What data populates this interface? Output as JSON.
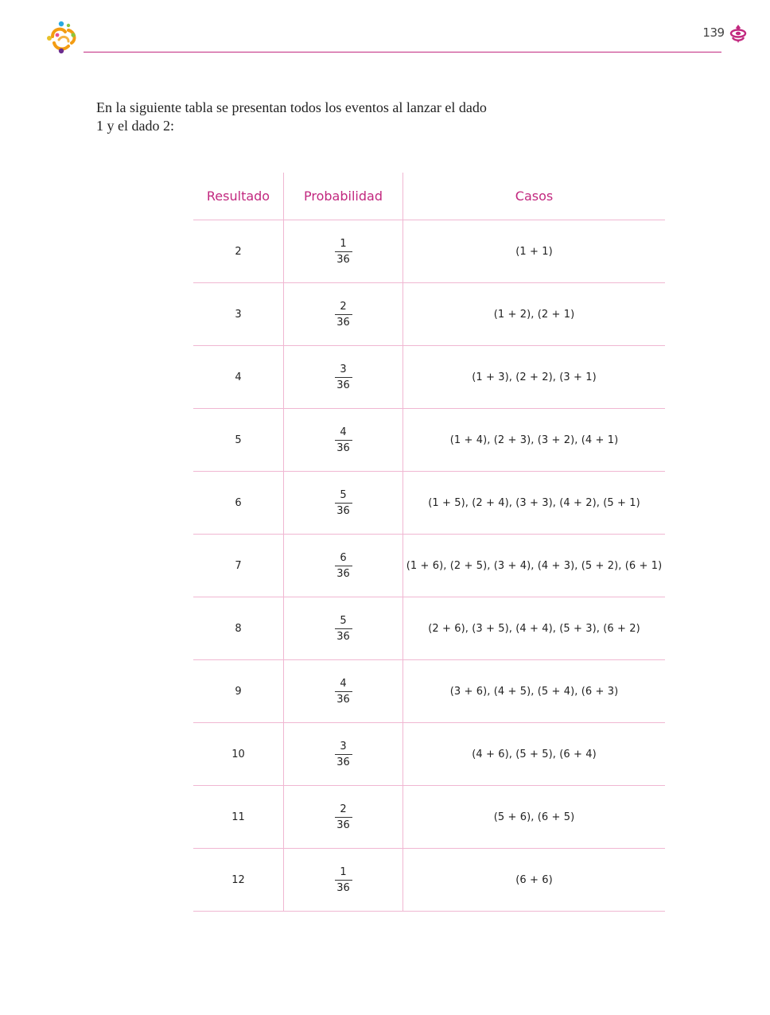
{
  "header": {
    "page_number": "139"
  },
  "intro": {
    "text": "En la siguiente tabla se presentan todos los eventos al lanzar el dado 1 y el dado 2:"
  },
  "table": {
    "headers": [
      "Resultado",
      "Probabilidad",
      "Casos"
    ],
    "rows": [
      {
        "result": "2",
        "prob_num": "1",
        "prob_den": "36",
        "cases": "(1 + 1)"
      },
      {
        "result": "3",
        "prob_num": "2",
        "prob_den": "36",
        "cases": "(1 + 2), (2 + 1)"
      },
      {
        "result": "4",
        "prob_num": "3",
        "prob_den": "36",
        "cases": "(1 + 3), (2 + 2), (3 + 1)"
      },
      {
        "result": "5",
        "prob_num": "4",
        "prob_den": "36",
        "cases": "(1 + 4), (2 + 3), (3 + 2), (4 + 1)"
      },
      {
        "result": "6",
        "prob_num": "5",
        "prob_den": "36",
        "cases": "(1 + 5), (2 + 4), (3 + 3), (4 + 2), (5 + 1)"
      },
      {
        "result": "7",
        "prob_num": "6",
        "prob_den": "36",
        "cases": "(1 + 6), (2 + 5), (3 + 4), (4 + 3), (5 + 2), (6 + 1)"
      },
      {
        "result": "8",
        "prob_num": "5",
        "prob_den": "36",
        "cases": "(2 + 6), (3 + 5), (4 + 4), (5 + 3), (6 + 2)"
      },
      {
        "result": "9",
        "prob_num": "4",
        "prob_den": "36",
        "cases": "(3 + 6), (4 + 5), (5 + 4), (6 + 3)"
      },
      {
        "result": "10",
        "prob_num": "3",
        "prob_den": "36",
        "cases": "(4 + 6), (5 + 5), (6 + 4)"
      },
      {
        "result": "11",
        "prob_num": "2",
        "prob_den": "36",
        "cases": "(5 + 6), (6 + 5)"
      },
      {
        "result": "12",
        "prob_num": "1",
        "prob_den": "36",
        "cases": "(6 + 6)"
      }
    ]
  },
  "colors": {
    "accent": "#c2287f",
    "table_rule": "#f0b7d2",
    "text": "#222222"
  },
  "icons": {
    "left_logo": "program-logo-icon",
    "right_logo": "sep-emblem-icon"
  }
}
